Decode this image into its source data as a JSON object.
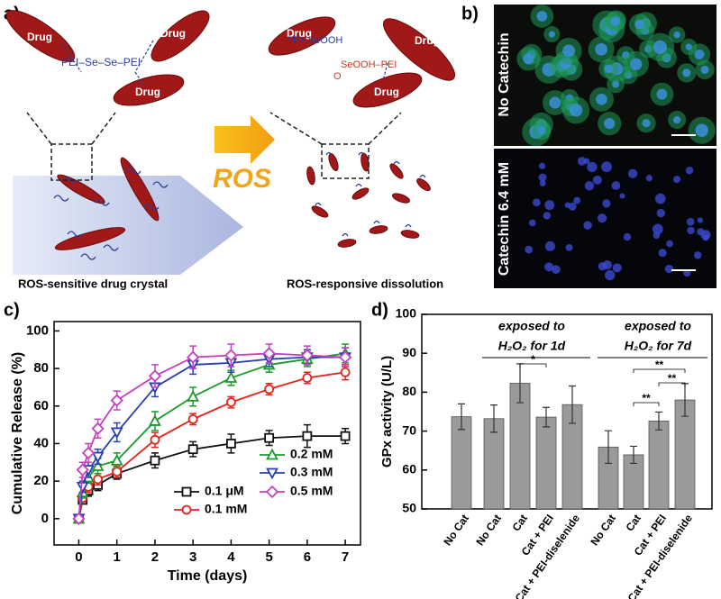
{
  "panel_labels": [
    "a)",
    "b)",
    "c)",
    "d)"
  ],
  "scheme": {
    "left_drugs": [
      "Drug",
      "Drug",
      "Drug"
    ],
    "left_linker": "PEI–Se–Se–PEI",
    "right_drugs": [
      "Drug",
      "Drug",
      "Drug"
    ],
    "right_linkers": [
      "PEI–SeOOH",
      "SeOOH–PEI"
    ],
    "oxygen": "O",
    "arrow_label": "ROS",
    "left_caption": "ROS-sensitive drug crystal",
    "right_caption": "ROS-responsive dissolution"
  },
  "micrographs": {
    "labels": [
      "No Catechin",
      "Catechin 6.4 mM"
    ]
  },
  "chart_data": [
    {
      "type": "line",
      "x_label": "Time (days)",
      "y_label": "Cumulative Release (%)",
      "x": [
        0,
        0.1,
        0.25,
        0.5,
        1,
        2,
        3,
        4,
        5,
        6,
        7
      ],
      "series": [
        {
          "name": "0.1 μM",
          "color": "#111111",
          "marker": "square",
          "values": [
            0,
            10,
            15,
            18,
            24,
            31,
            37,
            40,
            43,
            44,
            44
          ],
          "errors": [
            0,
            2,
            3,
            3,
            3,
            4,
            4,
            5,
            4,
            6,
            4
          ]
        },
        {
          "name": "0.1 mM",
          "color": "#e8231b",
          "marker": "circle",
          "values": [
            0,
            11,
            17,
            21,
            25,
            42,
            53,
            62,
            69,
            75,
            78
          ],
          "errors": [
            0,
            2,
            3,
            3,
            3,
            4,
            3,
            3,
            3,
            3,
            4
          ]
        },
        {
          "name": "0.2 mM",
          "color": "#1a9a2a",
          "marker": "triangle-up",
          "values": [
            0,
            14,
            22,
            28,
            31,
            52,
            65,
            75,
            82,
            85,
            88
          ],
          "errors": [
            0,
            3,
            3,
            4,
            4,
            5,
            5,
            4,
            4,
            4,
            5
          ]
        },
        {
          "name": "0.3 mM",
          "color": "#2a3fb0",
          "marker": "triangle-down",
          "values": [
            0,
            17,
            26,
            33,
            46,
            70,
            82,
            83,
            85,
            86,
            86
          ],
          "errors": [
            0,
            3,
            4,
            4,
            5,
            5,
            5,
            5,
            4,
            4,
            5
          ]
        },
        {
          "name": "0.5 mM",
          "color": "#c53fc0",
          "marker": "diamond",
          "values": [
            0,
            26,
            35,
            48,
            63,
            76,
            86,
            87,
            88,
            87,
            86
          ],
          "errors": [
            0,
            4,
            5,
            5,
            5,
            6,
            6,
            6,
            5,
            5,
            5
          ]
        }
      ],
      "xlim": [
        -0.65,
        7.4
      ],
      "ylim": [
        -14,
        105
      ],
      "xticks": [
        0,
        1,
        2,
        3,
        4,
        5,
        6,
        7
      ],
      "yticks": [
        0,
        20,
        40,
        60,
        80,
        100
      ],
      "legend": "lower right"
    },
    {
      "type": "bar",
      "y_label": "GPx activity (U/L)",
      "categories": [
        "No Cat",
        "No Cat",
        "Cat",
        "Cat + PEI",
        "Cat + PEI-diselenide",
        "No Cat",
        "Cat",
        "Cat + PEI",
        "Cat + PEI-diselenide"
      ],
      "values": [
        73.7,
        73.2,
        82.3,
        73.6,
        76.8,
        65.9,
        63.9,
        72.6,
        78
      ],
      "errors": [
        3.3,
        3.5,
        5,
        2.5,
        4.8,
        4.2,
        2.2,
        2.3,
        4.2
      ],
      "color": "#9a9a9a",
      "ylim": [
        50,
        100
      ],
      "yticks": [
        50,
        60,
        70,
        80,
        90,
        100
      ],
      "annotations": [
        "exposed to",
        "H₂O₂ for 1d",
        "exposed to",
        "H₂O₂ for 7d"
      ],
      "significance": [
        "*",
        "**",
        "**",
        "**"
      ]
    }
  ]
}
